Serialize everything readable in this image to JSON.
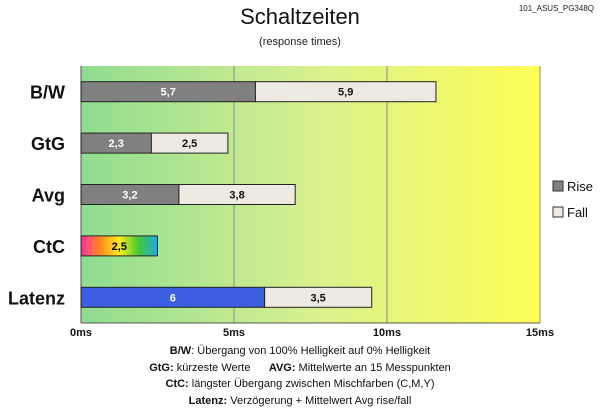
{
  "header": {
    "title": "Schaltzeiten",
    "subtitle": "(response times)",
    "file_id": "101_ASUS_PG348Q"
  },
  "chart_data": {
    "type": "bar",
    "orientation": "horizontal",
    "stacked": true,
    "categories": [
      "B/W",
      "GtG",
      "Avg",
      "CtC",
      "Latenz"
    ],
    "series": [
      {
        "name": "Rise",
        "values": [
          5.7,
          2.3,
          3.2,
          2.5,
          6
        ],
        "labels": [
          "5,7",
          "2,3",
          "3,2",
          "2,5",
          "6"
        ],
        "color": "#808080"
      },
      {
        "name": "Fall",
        "values": [
          5.9,
          2.5,
          3.8,
          null,
          3.5
        ],
        "labels": [
          "5,9",
          "2,5",
          "3,8",
          "",
          "3,5"
        ],
        "color": "#eeeae2"
      }
    ],
    "special_bars": {
      "CtC": {
        "style": "rainbow gradient",
        "colors": [
          "#ff2fa0",
          "#ff8a1a",
          "#ffee22",
          "#44c834",
          "#23a8e6"
        ]
      },
      "Latenz": {
        "rise_color": "#3b5fe0"
      }
    },
    "x_axis": {
      "min": 0,
      "max": 15,
      "ticks": [
        0,
        5,
        10,
        15
      ],
      "tick_labels": [
        "0ms",
        "5ms",
        "10ms",
        "15ms"
      ]
    },
    "background_gradient": [
      "#8fdc90",
      "#d8f090",
      "#ffff55"
    ],
    "grid": true,
    "legend_position": "right"
  },
  "footnotes": [
    {
      "key": "B/W",
      "text": ":  Übergang von 100% Helligkeit auf 0% Helligkeit"
    },
    {
      "key": "GtG:",
      "text": " kürzeste  Werte",
      "key2": "AVG:",
      "text2": " Mittelwerte  an 15 Messpunkten"
    },
    {
      "key": "CtC:",
      "text": " längster Übergang zwischen Mischfarben (C,M,Y)"
    },
    {
      "key": "Latenz:",
      "text": " Verzögerung  + Mittelwert Avg rise/fall"
    }
  ]
}
